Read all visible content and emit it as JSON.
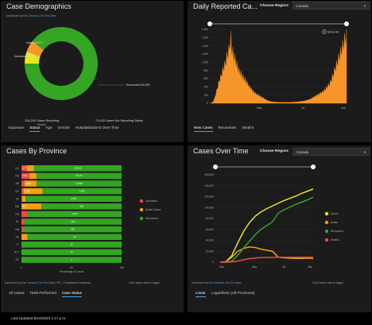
{
  "demographics": {
    "title": "Case Demographics",
    "attrib_prefix": "Dashboard by ",
    "attrib_link1": "Esri Canada",
    "attrib_sep": " | ",
    "attrib_link2": "Get The Data",
    "stats": [
      {
        "value": "134,294 Cases Reporting",
        "label": "Status"
      },
      {
        "value": "73,418 Cases Not Reporting Status",
        "label": ""
      }
    ],
    "tabs": [
      "Exposure",
      "Status",
      "Age",
      "Gender",
      "Hospitalizations Over Time"
    ],
    "active_tab": "Status"
  },
  "daily": {
    "title": "Daily Reported Ca...",
    "region_label": "Choose Region:",
    "region_value": "Canada",
    "show_all": "Show All",
    "tabs": [
      "New Cases",
      "Recoveries",
      "Deaths"
    ],
    "active_tab": "New Cases"
  },
  "province": {
    "title": "Cases By Province",
    "attrib_prefix": "Dashboard by ",
    "attrib_link1": "Esri Canada",
    "attrib_sep": " | ",
    "attrib_link2": "Get The Data",
    "attrib_suffix": " | *RC = Repatriated Canadians",
    "legend_note": "Click legend dots to toggle",
    "tabs": [
      "All Cases",
      "Tests Performed",
      "Case Status"
    ],
    "active_tab": "Case Status"
  },
  "overtime": {
    "title": "Cases Over Time",
    "region_label": "Choose Region:",
    "region_value": "Canada",
    "attrib_prefix": "Dashboard by ",
    "attrib_link1": "Esri Canada",
    "attrib_sep": " | ",
    "attrib_link2": "Get The Data",
    "legend_note": "Click legend dots to toggle",
    "tabs": [
      "Linear",
      "Logarithmic (All Provinces)"
    ],
    "active_tab": "Linear"
  },
  "footer": {
    "last_updated": "Last Updated   9/10/2020 1:17 p.m."
  },
  "colors": {
    "recovered": "#35a524",
    "active": "#f2a016",
    "deceased": "#f04848",
    "cases": "#e8e620",
    "daily": "#f6952a",
    "accent": "#37a6ff"
  },
  "chart_data": [
    {
      "type": "pie",
      "categories": [
        "Recovered",
        "Active",
        "Deceased"
      ],
      "values": [
        89.49,
        5.31,
        5.2
      ],
      "labels": [
        "Recovered 89.49%",
        "Active 5.31%",
        "Deceased 5.2%"
      ]
    },
    {
      "type": "area",
      "xlabels": [
        "May",
        "Jul",
        "Sep"
      ],
      "yticks": [
        "0",
        "200",
        "400",
        "600",
        "800",
        "1,000",
        "1,200",
        "1,400",
        "1,600",
        "1,800"
      ],
      "ylim": [
        0,
        1800
      ],
      "series": [
        {
          "values": [
            2,
            4,
            8,
            15,
            30,
            50,
            80,
            120,
            180,
            250,
            300,
            380,
            420,
            500,
            560,
            600,
            640,
            700,
            780,
            820,
            860,
            900,
            950,
            1000,
            1050,
            1150,
            1200,
            1250,
            1300,
            1400,
            1550,
            1600,
            1350,
            1300,
            1250,
            1200,
            1150,
            1100,
            1050,
            1000,
            950,
            900,
            850,
            800,
            780,
            760,
            740,
            700,
            680,
            650,
            620,
            600,
            580,
            560,
            540,
            500,
            480,
            450,
            420,
            400,
            380,
            360,
            340,
            320,
            300,
            280,
            260,
            250,
            240,
            230,
            220,
            210,
            200,
            190,
            180,
            170,
            160,
            150,
            140,
            130,
            120,
            110,
            100,
            90,
            80,
            70,
            65,
            60,
            55,
            50,
            45,
            40,
            40,
            38,
            35,
            35,
            32,
            30,
            30,
            28,
            28,
            26,
            26,
            25,
            25,
            25,
            25,
            25,
            25,
            25,
            25,
            25,
            25,
            25,
            25,
            25,
            25,
            25,
            25,
            25,
            25,
            30,
            30,
            30,
            30,
            30,
            35,
            35,
            35,
            35,
            40,
            40,
            40,
            45,
            45,
            50,
            50,
            55,
            55,
            60,
            60,
            65,
            70,
            75,
            80,
            85,
            90,
            95,
            100,
            110,
            120,
            130,
            140,
            150,
            160,
            170,
            180,
            190,
            200,
            210,
            220,
            230,
            240,
            250,
            260,
            270,
            280,
            290,
            300,
            320,
            340,
            360,
            380,
            400,
            420,
            440,
            460,
            480,
            520,
            560,
            600,
            650,
            700,
            750,
            800,
            850,
            900,
            950,
            1000,
            1050,
            1100,
            1150,
            1200,
            1250,
            1300,
            1350,
            1400,
            1450,
            1500,
            1550,
            1600,
            1650,
            1700
          ]
        }
      ]
    },
    {
      "type": "bar",
      "stacked": true,
      "orientation": "horizontal",
      "categories": [
        "QC",
        "ON",
        "AB",
        "BC",
        "SK",
        "MB",
        "NS",
        "NL",
        "NB",
        "PE",
        "YT",
        "RC*",
        "NT"
      ],
      "xlabel": "Percentage of Cases",
      "xticks": [
        "0",
        "50",
        "100"
      ],
      "xlim": [
        0,
        100
      ],
      "series": [
        {
          "name": "Deceased",
          "values": [
            5.3,
            8.0,
            3.0,
            2.0,
            0.8,
            0.0,
            6.0,
            3.0,
            2.0,
            0.0,
            0.0,
            0.0,
            0.0
          ]
        },
        {
          "name": "Active Cases",
          "values": [
            7.3,
            7.0,
            12.0,
            19.0,
            3.2,
            20.0,
            0.0,
            0.0,
            0.0,
            6.0,
            0.0,
            0.0,
            0.0
          ]
        },
        {
          "name": "Recovered",
          "values": [
            87.4,
            85.0,
            85.0,
            79.0,
            96.0,
            80.0,
            94.0,
            97.0,
            98.0,
            94.0,
            100.0,
            100.0,
            100.0
          ]
        }
      ],
      "bar_labels": [
        [
          "5,773",
          "",
          "56,834"
        ],
        [
          "2,813",
          "",
          "39,474"
        ],
        [
          "",
          "1,863",
          "13,958"
        ],
        [
          "",
          "1,388",
          "6,500"
        ],
        [
          "",
          "",
          "1,597"
        ],
        [
          "",
          "500",
          "989"
        ],
        [
          "",
          "",
          "1,019"
        ],
        [
          "",
          "",
          "263"
        ],
        [
          "",
          "",
          "189"
        ],
        [
          "",
          "",
          "44"
        ],
        [
          "",
          "",
          "15"
        ],
        [
          "",
          "",
          "13"
        ],
        [
          "",
          "",
          "5"
        ]
      ],
      "legend": [
        "Deceased",
        "Active Cases",
        "Recovered"
      ]
    },
    {
      "type": "line",
      "xlabels": [
        "Mar",
        "May",
        "Jul",
        "Sep"
      ],
      "yticks": [
        "0",
        "20,000",
        "40,000",
        "60,000",
        "80,000",
        "100,000",
        "120,000",
        "140,000",
        "160,000"
      ],
      "ylim": [
        0,
        160000
      ],
      "legend": [
        "Cases",
        "Active",
        "Recovered",
        "Deaths"
      ],
      "series": [
        {
          "name": "Cases",
          "values": [
            0,
            1000,
            12000,
            35000,
            56000,
            72000,
            84000,
            92000,
            98000,
            103000,
            108000,
            113000,
            117000,
            121000,
            126000,
            130000,
            134000
          ]
        },
        {
          "name": "Active",
          "values": [
            0,
            1000,
            9000,
            20000,
            25000,
            28000,
            27000,
            24000,
            22000,
            20000,
            9000,
            8000,
            7500,
            7000,
            7000,
            7500,
            7000
          ]
        },
        {
          "name": "Recovered",
          "values": [
            0,
            0,
            2000,
            12000,
            26000,
            38000,
            50000,
            60000,
            67000,
            74000,
            90000,
            96000,
            101000,
            106000,
            110000,
            114000,
            119000
          ]
        },
        {
          "name": "Deaths",
          "values": [
            0,
            0,
            500,
            2000,
            4500,
            6500,
            7800,
            8400,
            8700,
            8900,
            9000,
            9050,
            9100,
            9150,
            9150,
            9200,
            9200
          ]
        }
      ]
    }
  ]
}
